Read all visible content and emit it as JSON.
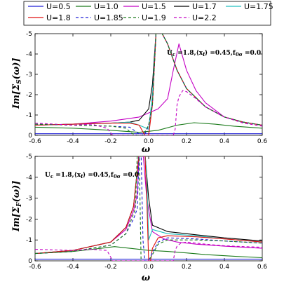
{
  "chart_data": [
    {
      "type": "line",
      "panel": "top",
      "ylabel": "Im[Σ_S(ω)]",
      "xlabel": "ω",
      "xlim": [
        -0.6,
        0.6
      ],
      "ylim": [
        -5,
        0
      ],
      "xticks": [
        "-0.6",
        "-0.4",
        "-0.2",
        "0.0",
        "0.2",
        "0.4",
        "0.6"
      ],
      "yticks": [
        "0",
        "-1",
        "-2",
        "-3",
        "-4",
        "-5"
      ],
      "annotation": "U_c = 1.8, ⟨x_f⟩ = 0.45, f_0σ = 0.0",
      "series": [
        {
          "name": "U=0.5",
          "x": [
            -0.6,
            -0.3,
            0.0,
            0.3,
            0.6
          ],
          "y": [
            -0.08,
            -0.08,
            -0.08,
            -0.08,
            -0.08
          ]
        },
        {
          "name": "U=1.0",
          "x": [
            -0.6,
            -0.4,
            -0.2,
            -0.05,
            0.05,
            0.15,
            0.24,
            0.35,
            0.45,
            0.6
          ],
          "y": [
            -0.4,
            -0.35,
            -0.25,
            -0.15,
            -0.25,
            -0.5,
            -0.62,
            -0.55,
            -0.45,
            -0.35
          ]
        },
        {
          "name": "U=1.5",
          "x": [
            -0.6,
            -0.4,
            -0.2,
            -0.05,
            0.05,
            0.1,
            0.13,
            0.16,
            0.2,
            0.25,
            0.3,
            0.4,
            0.5,
            0.6
          ],
          "y": [
            -0.5,
            -0.55,
            -0.7,
            -0.9,
            -1.3,
            -1.8,
            -3.2,
            -4.5,
            -3.2,
            -2.2,
            -1.6,
            -0.9,
            -0.65,
            -0.5
          ]
        },
        {
          "name": "U=1.7",
          "x": [
            -0.6,
            -0.4,
            -0.2,
            -0.1,
            -0.05,
            0.0,
            0.02,
            0.04,
            0.06,
            0.1,
            0.15,
            0.2,
            0.3,
            0.4,
            0.5,
            0.6
          ],
          "y": [
            -0.5,
            -0.55,
            -0.6,
            -0.65,
            -0.75,
            -1.3,
            -2.5,
            -5.2,
            -5.2,
            -4.5,
            -3.2,
            -2.3,
            -1.4,
            -0.9,
            -0.65,
            -0.5
          ]
        },
        {
          "name": "U=1.75",
          "x": [
            -0.6,
            -0.4,
            -0.2,
            -0.1,
            -0.05,
            0.0,
            0.02,
            0.04,
            0.06,
            0.1,
            0.15,
            0.2,
            0.3,
            0.4,
            0.5,
            0.6
          ],
          "y": [
            -0.5,
            -0.55,
            -0.6,
            -0.65,
            -0.5,
            -0.3,
            -2.0,
            -5.2,
            -5.2,
            -4.5,
            -3.2,
            -2.3,
            -1.4,
            -0.9,
            -0.65,
            -0.5
          ]
        },
        {
          "name": "U=1.8",
          "x": [
            -0.6,
            -0.4,
            -0.2,
            -0.1,
            -0.05,
            -0.02,
            0.0,
            0.02,
            0.04,
            0.06,
            0.1,
            0.15,
            0.2,
            0.3,
            0.4,
            0.5,
            0.6
          ],
          "y": [
            -0.5,
            -0.55,
            -0.6,
            -0.6,
            -0.5,
            0.0,
            0.0,
            -1.5,
            -5.2,
            -5.2,
            -4.5,
            -3.2,
            -2.3,
            -1.4,
            -0.9,
            -0.65,
            -0.5
          ]
        },
        {
          "name": "U=1.85",
          "dashed": true,
          "x": [
            -0.6,
            -0.4,
            -0.2,
            -0.1,
            -0.07,
            -0.04,
            -0.02,
            0.0,
            0.02,
            0.04,
            0.06,
            0.1,
            0.15,
            0.2,
            0.3,
            0.4,
            0.5,
            0.6
          ],
          "y": [
            -0.55,
            -0.5,
            -0.45,
            -0.4,
            -0.2,
            0.0,
            -0.05,
            -0.5,
            -1.5,
            -5.2,
            -5.2,
            -4.5,
            -3.2,
            -2.3,
            -1.4,
            -0.9,
            -0.65,
            -0.5
          ]
        },
        {
          "name": "U=1.9",
          "dashed": true,
          "x": [
            -0.6,
            -0.4,
            -0.2,
            -0.12,
            -0.09,
            -0.06,
            -0.03,
            0.0,
            0.02,
            0.04,
            0.06,
            0.1,
            0.15,
            0.2,
            0.3,
            0.4,
            0.5,
            0.6
          ],
          "y": [
            -0.55,
            -0.5,
            -0.45,
            -0.35,
            -0.1,
            0.0,
            0.0,
            -0.5,
            -1.5,
            -5.2,
            -5.2,
            -4.5,
            -3.2,
            -2.3,
            -1.4,
            -0.9,
            -0.65,
            -0.5
          ]
        },
        {
          "name": "U=2.2",
          "dashed": true,
          "x": [
            -0.6,
            -0.4,
            -0.3,
            -0.22,
            -0.19,
            -0.15,
            -0.1,
            0.0,
            0.1,
            0.13,
            0.14,
            0.15,
            0.16,
            0.18,
            0.2,
            0.25,
            0.3,
            0.4,
            0.5,
            0.6
          ],
          "y": [
            -0.6,
            -0.5,
            -0.55,
            -0.35,
            0.0,
            0.0,
            0.0,
            0.0,
            0.0,
            0.0,
            -0.3,
            -1.5,
            -1.9,
            -2.2,
            -2.15,
            -1.8,
            -1.4,
            -0.9,
            -0.6,
            -0.45
          ]
        }
      ]
    },
    {
      "type": "line",
      "panel": "bottom",
      "ylabel": "Im[Σ_F(ω)]",
      "xlabel": "ω",
      "xlim": [
        -0.6,
        0.6
      ],
      "ylim": [
        -5,
        0
      ],
      "xticks": [
        "-0.6",
        "-0.4",
        "-0.2",
        "0.0",
        "0.2",
        "0.4",
        "0.6"
      ],
      "yticks": [
        "0",
        "-1",
        "-2",
        "-3",
        "-4",
        "-5"
      ],
      "annotation": "U_c = 1.8, ⟨x_f⟩ = 0.45, f_0σ = 0.0",
      "series": [
        {
          "name": "U=0.5",
          "x": [
            -0.6,
            -0.3,
            0.0,
            0.3,
            0.6
          ],
          "y": [
            -0.08,
            -0.08,
            -0.08,
            -0.08,
            -0.08
          ]
        },
        {
          "name": "U=1.0",
          "x": [
            -0.6,
            -0.4,
            -0.25,
            -0.18,
            -0.1,
            0.0,
            0.1,
            0.2,
            0.3,
            0.45,
            0.6
          ],
          "y": [
            -0.35,
            -0.45,
            -0.6,
            -0.68,
            -0.6,
            -0.5,
            -0.45,
            -0.38,
            -0.3,
            -0.22,
            -0.15
          ]
        },
        {
          "name": "U=1.5",
          "x": [
            -0.6,
            -0.4,
            -0.2,
            -0.12,
            -0.08,
            -0.06,
            -0.05,
            -0.03,
            -0.01,
            0.02,
            0.08,
            0.15,
            0.25,
            0.4,
            0.6
          ],
          "y": [
            -0.35,
            -0.5,
            -0.9,
            -1.5,
            -2.4,
            -3.2,
            -5.2,
            -5.2,
            -3.0,
            -1.4,
            -1.05,
            -0.9,
            -0.8,
            -0.7,
            -0.6
          ]
        },
        {
          "name": "U=1.7",
          "x": [
            -0.6,
            -0.4,
            -0.2,
            -0.12,
            -0.08,
            -0.05,
            -0.04,
            -0.02,
            0.0,
            0.02,
            0.1,
            0.25,
            0.4,
            0.6
          ],
          "y": [
            -0.35,
            -0.5,
            -0.9,
            -1.6,
            -2.6,
            -5.2,
            -5.2,
            -5.2,
            -3.0,
            -1.7,
            -1.4,
            -1.25,
            -1.1,
            -0.95
          ]
        },
        {
          "name": "U=1.75",
          "x": [
            -0.6,
            -0.4,
            -0.2,
            -0.12,
            -0.08,
            -0.05,
            -0.04,
            -0.02,
            -0.01,
            0.0,
            0.02,
            0.1,
            0.25,
            0.4,
            0.6
          ],
          "y": [
            -0.35,
            -0.5,
            -0.9,
            -1.6,
            -2.6,
            -5.2,
            -5.2,
            -5.2,
            -4.0,
            -1.0,
            -1.5,
            -1.3,
            -1.2,
            -1.05,
            -0.9
          ]
        },
        {
          "name": "U=1.8",
          "x": [
            -0.6,
            -0.4,
            -0.2,
            -0.12,
            -0.08,
            -0.05,
            -0.04,
            -0.02,
            -0.01,
            0.0,
            0.01,
            0.02,
            0.05,
            0.1,
            0.25,
            0.4,
            0.6
          ],
          "y": [
            -0.35,
            -0.5,
            -0.9,
            -1.6,
            -2.6,
            -5.2,
            -5.2,
            -5.2,
            -3.0,
            0.0,
            0.0,
            -0.6,
            -1.1,
            -1.2,
            -1.15,
            -1.05,
            -0.9
          ]
        },
        {
          "name": "U=1.85",
          "dashed": true,
          "x": [
            -0.6,
            -0.4,
            -0.2,
            -0.12,
            -0.08,
            -0.06,
            -0.05,
            -0.04,
            -0.03,
            -0.02,
            0.0,
            0.02,
            0.05,
            0.1,
            0.25,
            0.4,
            0.6
          ],
          "y": [
            -0.35,
            -0.45,
            -0.75,
            -1.3,
            -2.0,
            -2.5,
            -5.2,
            -5.2,
            -1.0,
            0.0,
            0.0,
            -0.4,
            -0.9,
            -1.1,
            -1.05,
            -0.95,
            -0.85
          ]
        },
        {
          "name": "U=1.9",
          "dashed": true,
          "x": [
            -0.6,
            -0.4,
            -0.2,
            -0.12,
            -0.09,
            -0.07,
            -0.06,
            -0.05,
            -0.04,
            -0.02,
            0.0,
            0.02,
            0.05,
            0.1,
            0.25,
            0.4,
            0.6
          ],
          "y": [
            -0.35,
            -0.45,
            -0.75,
            -1.3,
            -2.0,
            -2.5,
            -5.2,
            -5.2,
            0.0,
            0.0,
            0.0,
            -0.3,
            -0.8,
            -1.0,
            -1.0,
            -0.95,
            -0.85
          ]
        },
        {
          "name": "U=2.2",
          "dashed": true,
          "x": [
            -0.6,
            -0.4,
            -0.3,
            -0.22,
            -0.19,
            -0.15,
            0.0,
            0.13,
            0.14,
            0.15,
            0.17,
            0.2,
            0.3,
            0.4,
            0.5,
            0.6
          ],
          "y": [
            -0.55,
            -0.5,
            -0.55,
            -0.5,
            0.0,
            0.0,
            0.0,
            0.0,
            -0.5,
            -0.7,
            -0.85,
            -0.9,
            -0.8,
            -0.72,
            -0.68,
            -0.65
          ]
        }
      ]
    }
  ],
  "legend": {
    "entries": [
      {
        "label": "U=0.5",
        "color": "#1f1fd6",
        "dash": false
      },
      {
        "label": "U=1.0",
        "color": "#1a7a1a",
        "dash": false
      },
      {
        "label": "U=1.5",
        "color": "#c400c4",
        "dash": false
      },
      {
        "label": "U=1.7",
        "color": "#000000",
        "dash": false
      },
      {
        "label": "U=1.75",
        "color": "#20c0c0",
        "dash": false
      },
      {
        "label": "U=1.8",
        "color": "#e01010",
        "dash": false
      },
      {
        "label": "U=1.85",
        "color": "#1f1fd6",
        "dash": true
      },
      {
        "label": "U=1.9",
        "color": "#1a7a1a",
        "dash": true
      },
      {
        "label": "U=2.2",
        "color": "#c400c4",
        "dash": true
      }
    ]
  },
  "labels": {
    "top_ylabel_main": "Im[Σ",
    "top_ylabel_sub": "S",
    "top_ylabel_tail": "(ω)]",
    "bottom_ylabel_main": "Im[Σ",
    "bottom_ylabel_sub": "F",
    "bottom_ylabel_tail": "(ω)]",
    "xlabel": "ω",
    "ann_top": "U",
    "ann_top_sub": "c",
    "ann_top_mid": " =1.8,⟨x",
    "ann_top_sub2": "f",
    "ann_top_tail": "⟩ =0.45,f",
    "ann_top_sub3": "0σ",
    "ann_top_end": " =0.0",
    "ann_bottom": "U",
    "ann_bottom_sub": "c",
    "ann_bottom_mid": " =1.8,⟨x",
    "ann_bottom_sub2": "f",
    "ann_bottom_tail": "⟩ =0.45,f",
    "ann_bottom_sub3": "0σ",
    "ann_bottom_end": " =0.0"
  }
}
